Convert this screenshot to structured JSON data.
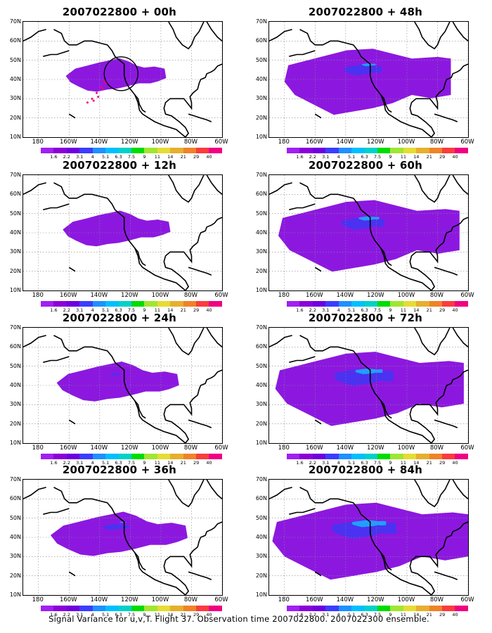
{
  "panels": [
    {
      "title": "2007022800 + 00h",
      "fill": [
        0.35,
        0,
        0
      ],
      "extra": "target"
    },
    {
      "title": "2007022800 + 48h",
      "fill": [
        0.8,
        0.35,
        0.1
      ],
      "extra": ""
    },
    {
      "title": "2007022800 + 12h",
      "fill": [
        0.4,
        0,
        0
      ],
      "extra": ""
    },
    {
      "title": "2007022800 + 60h",
      "fill": [
        0.9,
        0.4,
        0.15
      ],
      "extra": ""
    },
    {
      "title": "2007022800 + 24h",
      "fill": [
        0.5,
        0.1,
        0
      ],
      "extra": ""
    },
    {
      "title": "2007022800 + 72h",
      "fill": [
        0.95,
        0.55,
        0.2
      ],
      "extra": ""
    },
    {
      "title": "2007022800 + 36h",
      "fill": [
        0.6,
        0.25,
        0.05
      ],
      "extra": ""
    },
    {
      "title": "2007022800 + 84h",
      "fill": [
        1.0,
        0.6,
        0.25
      ],
      "extra": ""
    }
  ],
  "lat_labels": [
    "70N",
    "60N",
    "50N",
    "40N",
    "30N",
    "20N",
    "10N"
  ],
  "lon_labels": [
    "180",
    "160W",
    "140W",
    "120W",
    "100W",
    "80W",
    "60W"
  ],
  "colorbar": {
    "labels": [
      "1.6",
      "2.2",
      "3.1",
      "4",
      "5.1",
      "6.3",
      "7.5",
      "9",
      "11",
      "14",
      "21",
      "29",
      "40"
    ],
    "colors": [
      "#a020f0",
      "#8c00d8",
      "#6e00e0",
      "#3c3cff",
      "#1e90ff",
      "#00bfff",
      "#00d2c8",
      "#00dc00",
      "#a0e632",
      "#e6dc32",
      "#e6af2d",
      "#f08228",
      "#fa3c3c",
      "#f00082"
    ]
  },
  "footer": "Signal Variance for u,v,T. Flight 37. Observation time 2007022800. 2007022300 ensemble."
}
